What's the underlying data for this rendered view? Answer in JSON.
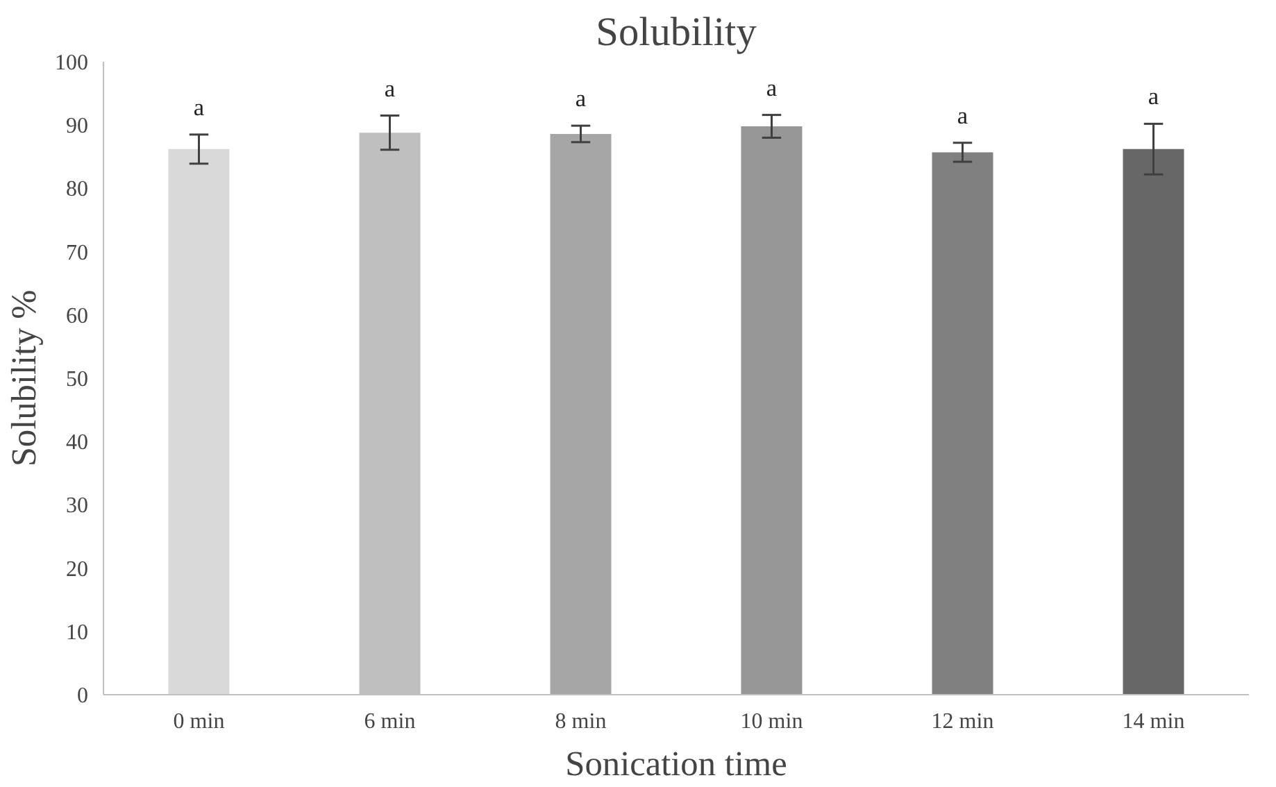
{
  "chart_data": {
    "type": "bar",
    "title": "Solubility",
    "xlabel": "Sonication time",
    "ylabel": "Solubility %",
    "categories": [
      "0 min",
      "6 min",
      "8 min",
      "10 min",
      "12 min",
      "14 min"
    ],
    "values": [
      86.2,
      88.8,
      88.6,
      89.8,
      85.7,
      86.2
    ],
    "errors": [
      2.3,
      2.7,
      1.3,
      1.8,
      1.5,
      4
    ],
    "colors": [
      "#d9d9d9",
      "#bfbfbf",
      "#a6a6a6",
      "#969696",
      "#808080",
      "#676767"
    ],
    "ylim": [
      0,
      100
    ],
    "yticks": [
      0,
      10,
      20,
      30,
      40,
      50,
      60,
      70,
      80,
      90,
      100
    ],
    "grid": false,
    "annotations": [
      "a",
      "a",
      "a",
      "a",
      "a",
      "a"
    ]
  }
}
